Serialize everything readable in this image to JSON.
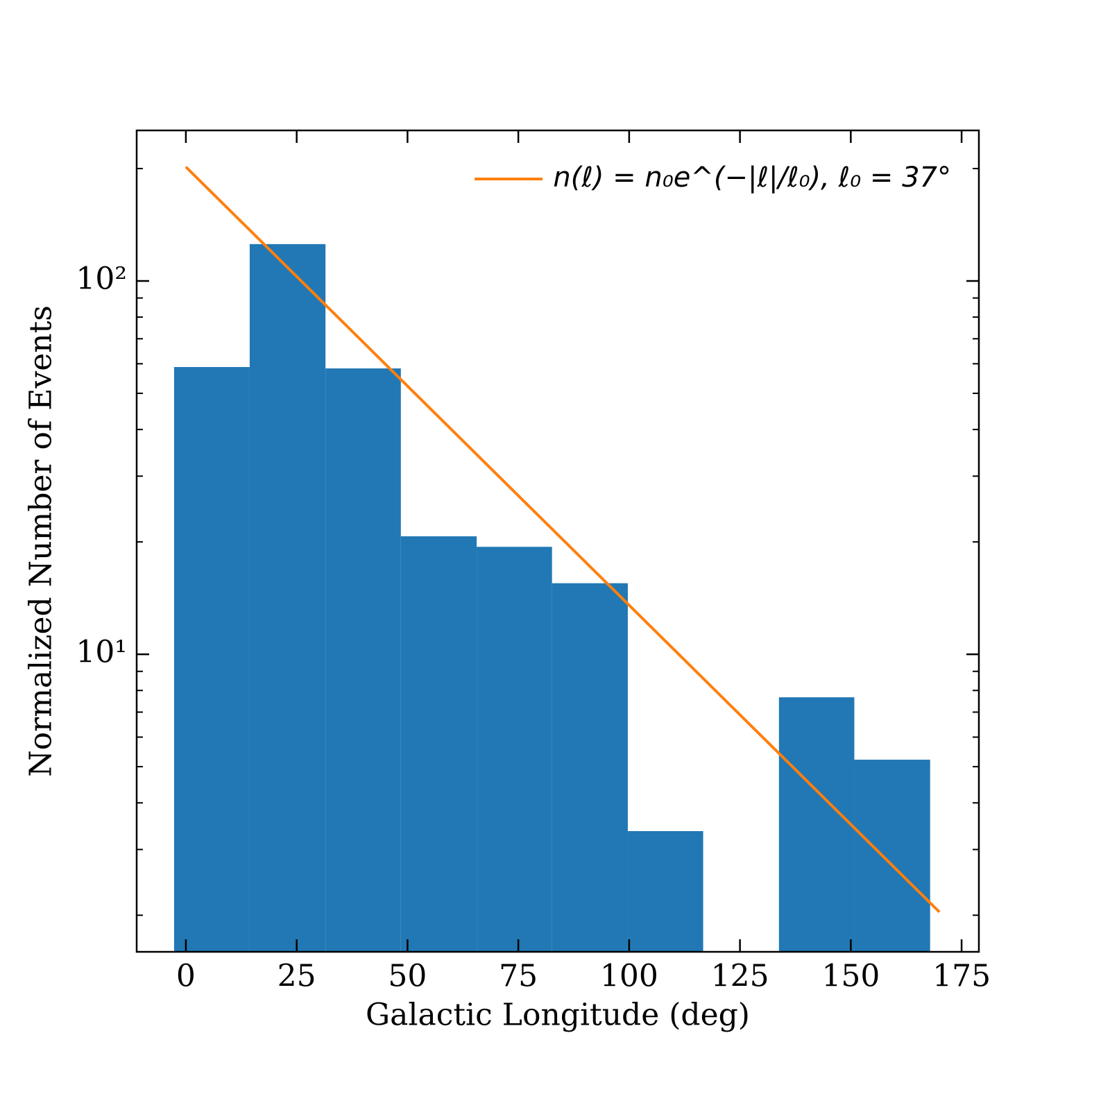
{
  "chart_data": {
    "type": "histogram",
    "xlabel": "Galactic Longitude (deg)",
    "ylabel": "Normalized Number of Events",
    "bins": [
      -2.66,
      14.4,
      31.5,
      48.5,
      65.6,
      82.6,
      99.7,
      116.7,
      133.8,
      150.8,
      167.9
    ],
    "values": [
      58.8,
      125.5,
      58.3,
      20.7,
      19.4,
      15.5,
      3.36,
      0,
      7.67,
      5.22
    ],
    "color": "#2178b4",
    "overlay": {
      "type": "line",
      "name": "n(ℓ) = n₀e^(−|ℓ|/ℓ₀),  ℓ₀ = 37°",
      "color": "#ff7f0e",
      "x": [
        0,
        170
      ],
      "values": [
        202,
        2.04
      ]
    },
    "xlim": [
      -11.1,
      178.9
    ],
    "xticks": [
      0,
      25,
      50,
      75,
      100,
      125,
      150,
      175
    ],
    "ylim": [
      1.596,
      253
    ],
    "yscale": "log",
    "yticks": [
      {
        "value": 10,
        "label": "10¹"
      },
      {
        "value": 100,
        "label": "10²"
      }
    ],
    "yminorticks": [
      2,
      3,
      4,
      5,
      6,
      7,
      8,
      9,
      20,
      30,
      40,
      50,
      60,
      70,
      80,
      90,
      200
    ],
    "legend": "upper right"
  }
}
